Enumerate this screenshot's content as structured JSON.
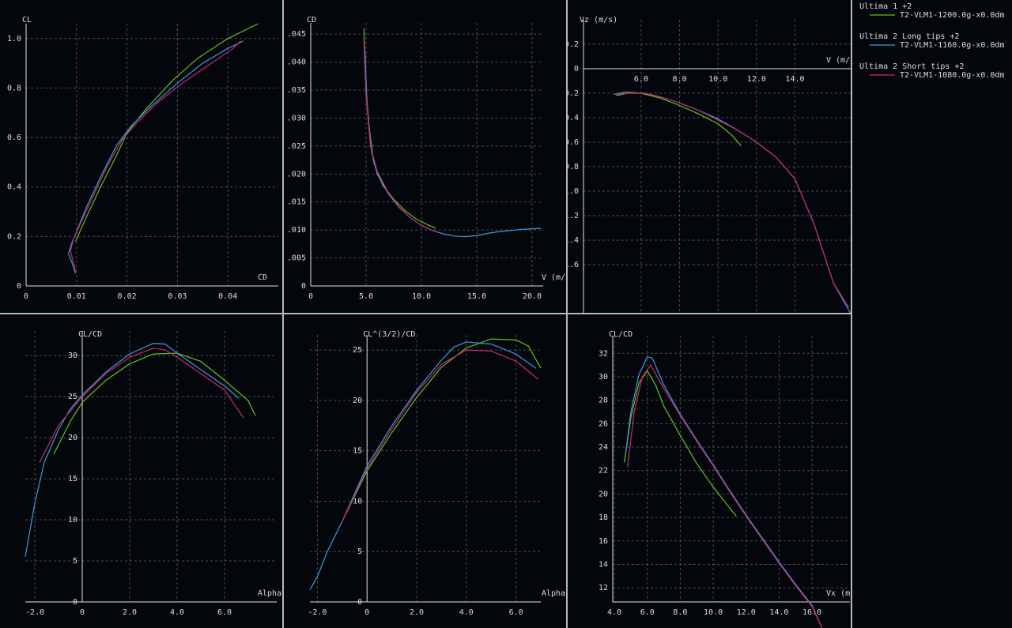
{
  "legend": [
    {
      "name": "Ultima 1 +2",
      "label": "T2-VLM1-1200.0g-x0.0dm",
      "color": "#5fc41a"
    },
    {
      "name": "Ultima 2 Long tips +2",
      "label": "T2-VLM1-1160.0g-x0.0dm",
      "color": "#3a9be0"
    },
    {
      "name": "Ultima 2 Short tips +2",
      "label": "T2-VLM1-1080.0g-x0.0dm",
      "color": "#d0246e"
    }
  ],
  "chart_data": [
    {
      "type": "line",
      "y_label": "CL",
      "x_label": "CD",
      "grid": true,
      "xlim": [
        0,
        0.05
      ],
      "ylim": [
        0,
        1.06
      ],
      "xticks": [
        0,
        0.01,
        0.02,
        0.03,
        0.04
      ],
      "yticks": [
        0,
        0.2,
        0.4,
        0.6,
        0.8,
        {
          "value": 1.0,
          "label": "1.0"
        }
      ],
      "series": [
        {
          "color": "#5fc41a",
          "x": [
            0.0098,
            0.012,
            0.015,
            0.018,
            0.02,
            0.024,
            0.029,
            0.034,
            0.04,
            0.046
          ],
          "values": [
            0.18,
            0.28,
            0.41,
            0.53,
            0.62,
            0.72,
            0.83,
            0.92,
            1.0,
            1.06
          ]
        },
        {
          "color": "#3a9be0",
          "x": [
            0.0098,
            0.009,
            0.0084,
            0.009,
            0.01,
            0.012,
            0.015,
            0.018,
            0.021,
            0.025,
            0.03,
            0.035,
            0.04,
            0.043
          ],
          "values": [
            0.05,
            0.1,
            0.13,
            0.17,
            0.22,
            0.32,
            0.45,
            0.57,
            0.65,
            0.73,
            0.82,
            0.9,
            0.96,
            0.99
          ]
        },
        {
          "color": "#d0246e",
          "x": [
            0.0098,
            0.0092,
            0.0088,
            0.0094,
            0.0105,
            0.013,
            0.016,
            0.019,
            0.022,
            0.026,
            0.031,
            0.036,
            0.041,
            0.0425
          ],
          "values": [
            0.06,
            0.11,
            0.14,
            0.19,
            0.24,
            0.35,
            0.48,
            0.59,
            0.66,
            0.74,
            0.82,
            0.89,
            0.96,
            0.99
          ]
        }
      ]
    },
    {
      "type": "line",
      "y_label": "CD",
      "x_label": "V (m/",
      "grid": true,
      "xlim": [
        0,
        21
      ],
      "ylim": [
        0,
        0.047
      ],
      "xticks": [
        0,
        {
          "value": 5,
          "label": "5.0"
        },
        {
          "value": 10,
          "label": "10.0"
        },
        {
          "value": 15,
          "label": "15.0"
        },
        {
          "value": 20,
          "label": "20.0"
        }
      ],
      "yticks": [
        0,
        {
          "value": 0.005,
          "label": ".005"
        },
        {
          "value": 0.01,
          "label": ".010"
        },
        {
          "value": 0.015,
          "label": ".015"
        },
        {
          "value": 0.02,
          "label": ".020"
        },
        {
          "value": 0.025,
          "label": ".025"
        },
        {
          "value": 0.03,
          "label": ".030"
        },
        {
          "value": 0.035,
          "label": ".035"
        },
        {
          "value": 0.04,
          "label": ".040"
        },
        {
          "value": 0.045,
          "label": ".045"
        }
      ],
      "series": [
        {
          "color": "#5fc41a",
          "x": [
            4.8,
            5.0,
            5.3,
            5.7,
            6.5,
            7.5,
            8.5,
            9.5,
            10.5,
            11.3
          ],
          "values": [
            0.046,
            0.035,
            0.028,
            0.022,
            0.018,
            0.0155,
            0.0135,
            0.012,
            0.011,
            0.0103
          ]
        },
        {
          "color": "#3a9be0",
          "x": [
            4.9,
            5.1,
            5.5,
            6,
            7,
            8,
            9,
            10,
            11,
            12,
            13,
            14,
            15,
            16,
            17,
            18,
            19,
            20,
            20.8
          ],
          "values": [
            0.042,
            0.032,
            0.024,
            0.02,
            0.0165,
            0.014,
            0.0122,
            0.0108,
            0.0099,
            0.0093,
            0.0089,
            0.0088,
            0.009,
            0.0094,
            0.0097,
            0.0099,
            0.0101,
            0.0102,
            0.0103
          ]
        },
        {
          "color": "#d0246e",
          "x": [
            4.8,
            5.0,
            5.4,
            6,
            7,
            8,
            9,
            10,
            11,
            11.5
          ],
          "values": [
            0.044,
            0.034,
            0.025,
            0.0205,
            0.0167,
            0.0141,
            0.0122,
            0.0108,
            0.0099,
            0.0096
          ]
        }
      ]
    },
    {
      "type": "line",
      "y_label": "Vz (m/s)",
      "x_label": "V (m/",
      "grid": true,
      "xlim": [
        3,
        16.9
      ],
      "ylim": [
        2.0,
        -0.4
      ],
      "xticks": [
        {
          "value": 6,
          "label": "6.0"
        },
        {
          "value": 8,
          "label": "8.0"
        },
        {
          "value": 10,
          "label": "10.0"
        },
        {
          "value": 12,
          "label": "12.0"
        },
        {
          "value": 14,
          "label": "14.0"
        }
      ],
      "yticks": [
        -0.2,
        0,
        0.2,
        0.4,
        0.6,
        0.8,
        {
          "value": 1.0,
          "label": "1.0"
        },
        1.2,
        1.4,
        1.6
      ],
      "series": [
        {
          "color": "#5fc41a",
          "x": [
            4.6,
            5.2,
            6,
            7,
            8,
            9,
            10,
            10.7,
            11.2
          ],
          "values": [
            0.21,
            0.19,
            0.2,
            0.24,
            0.3,
            0.37,
            0.45,
            0.54,
            0.63
          ]
        },
        {
          "color": "#3a9be0",
          "x": [
            4.7,
            5.3,
            6.2,
            7,
            8,
            9,
            10,
            11,
            12,
            13,
            14,
            15,
            16,
            16.9
          ],
          "values": [
            0.22,
            0.2,
            0.2,
            0.23,
            0.28,
            0.34,
            0.41,
            0.5,
            0.6,
            0.72,
            0.9,
            1.27,
            1.75,
            2.0
          ]
        },
        {
          "color": "#d0246e",
          "x": [
            4.7,
            5.3,
            6.2,
            7,
            8,
            9,
            10,
            11,
            12,
            13,
            14,
            15,
            16,
            16.8
          ],
          "values": [
            0.21,
            0.2,
            0.2,
            0.23,
            0.28,
            0.34,
            0.42,
            0.5,
            0.6,
            0.72,
            0.9,
            1.27,
            1.75,
            1.95
          ]
        }
      ]
    },
    {
      "type": "line",
      "y_label": "CL/CD",
      "x_label": "Alpha",
      "grid": true,
      "xlim": [
        -2.4,
        8.2
      ],
      "ylim": [
        0,
        33
      ],
      "xticks": [
        {
          "value": -2,
          "label": "-2.0"
        },
        0,
        {
          "value": 2,
          "label": "2.0"
        },
        {
          "value": 4,
          "label": "4.0"
        },
        {
          "value": 6,
          "label": "6.0"
        }
      ],
      "yticks": [
        0,
        5,
        10,
        15,
        20,
        25,
        30
      ],
      "series": [
        {
          "color": "#5fc41a",
          "x": [
            -1.2,
            -0.5,
            0,
            1,
            2,
            3,
            4,
            5,
            6,
            7,
            7.3
          ],
          "values": [
            18,
            22,
            24.3,
            27,
            29,
            30.2,
            30.3,
            29.3,
            27,
            24.5,
            22.7
          ]
        },
        {
          "color": "#3a9be0",
          "x": [
            -2.4,
            -2,
            -1.6,
            -1,
            -0.5,
            0,
            1,
            2,
            3,
            3.5,
            4,
            5,
            6,
            6.6
          ],
          "values": [
            5.5,
            12,
            17,
            21,
            23.5,
            25.2,
            28,
            30.2,
            31.5,
            31.4,
            30.3,
            28.3,
            26.3,
            24.8
          ]
        },
        {
          "color": "#d0246e",
          "x": [
            -1.8,
            -1,
            0,
            1,
            2,
            3,
            3.5,
            4,
            5,
            6,
            6.8
          ],
          "values": [
            17,
            21.5,
            25,
            27.8,
            29.8,
            30.9,
            30.7,
            29.8,
            27.8,
            25.8,
            22.4
          ]
        }
      ]
    },
    {
      "type": "line",
      "y_label": "CL^(3/2)/CD",
      "x_label": "Alpha",
      "grid": true,
      "xlim": [
        -2.3,
        7.0
      ],
      "ylim": [
        0,
        26.5
      ],
      "xticks": [
        {
          "value": -2,
          "label": "-2.0"
        },
        0,
        {
          "value": 2,
          "label": "2.0"
        },
        {
          "value": 4,
          "label": "4.0"
        },
        {
          "value": 6,
          "label": "6.0"
        }
      ],
      "yticks": [
        0,
        5,
        10,
        15,
        20,
        25
      ],
      "series": [
        {
          "color": "#5fc41a",
          "x": [
            -1,
            0,
            1,
            2,
            3,
            4,
            5,
            6,
            6.5,
            7.0
          ],
          "values": [
            8,
            13,
            16.8,
            20.3,
            23.3,
            25.2,
            26.1,
            26,
            25.4,
            23.2
          ]
        },
        {
          "color": "#3a9be0",
          "x": [
            -2.3,
            -2,
            -1.6,
            -1,
            0,
            1,
            2,
            3,
            3.5,
            4,
            5,
            6,
            6.8
          ],
          "values": [
            1.2,
            2.5,
            5,
            8,
            13.5,
            17.5,
            21,
            24,
            25.3,
            25.8,
            25.6,
            24.6,
            23.2
          ]
        },
        {
          "color": "#d0246e",
          "x": [
            -1,
            0,
            1,
            2,
            3,
            4,
            5,
            6,
            6.9
          ],
          "values": [
            8,
            13.2,
            17.2,
            20.8,
            23.6,
            25,
            24.9,
            23.9,
            22.1
          ]
        }
      ]
    },
    {
      "type": "line",
      "y_label": "CL/CD",
      "x_label": "Vx (m",
      "grid": true,
      "xlim": [
        3.9,
        18.3
      ],
      "ylim": [
        10.8,
        33.5
      ],
      "xticks": [
        {
          "value": 4,
          "label": "4.0"
        },
        {
          "value": 6,
          "label": "6.0"
        },
        {
          "value": 8,
          "label": "8.0"
        },
        {
          "value": 10,
          "label": "10.0"
        },
        {
          "value": 12,
          "label": "12.0"
        },
        {
          "value": 14,
          "label": "14.0"
        },
        {
          "value": 16,
          "label": "16.0"
        }
      ],
      "yticks": [
        12,
        14,
        16,
        18,
        20,
        22,
        24,
        26,
        28,
        30,
        32
      ],
      "series": [
        {
          "color": "#5fc41a",
          "x": [
            4.6,
            5,
            5.5,
            6,
            6.5,
            7,
            8,
            9,
            10,
            11.4
          ],
          "values": [
            22.7,
            26.5,
            29.5,
            30.5,
            29.3,
            27.5,
            25,
            22.6,
            20.6,
            18.1
          ]
        },
        {
          "color": "#3a9be0",
          "x": [
            4.7,
            5,
            5.5,
            6,
            6.3,
            7,
            8,
            9,
            10,
            11,
            12,
            13,
            14,
            15,
            16,
            16.6
          ],
          "values": [
            23.6,
            27,
            30.2,
            31.7,
            31.6,
            29.3,
            26.8,
            24.6,
            22.5,
            20.3,
            18.2,
            16.2,
            14.2,
            12.3,
            10.5,
            8.6
          ]
        },
        {
          "color": "#d0246e",
          "x": [
            4.8,
            5.2,
            5.7,
            6.2,
            7,
            8,
            9,
            10,
            11,
            12,
            13,
            14,
            15,
            16,
            16.6
          ],
          "values": [
            22.3,
            27,
            30,
            31,
            29,
            26.7,
            24.5,
            22.4,
            20.2,
            18.1,
            16.1,
            14.1,
            12.2,
            10.4,
            8.6
          ]
        }
      ]
    }
  ]
}
